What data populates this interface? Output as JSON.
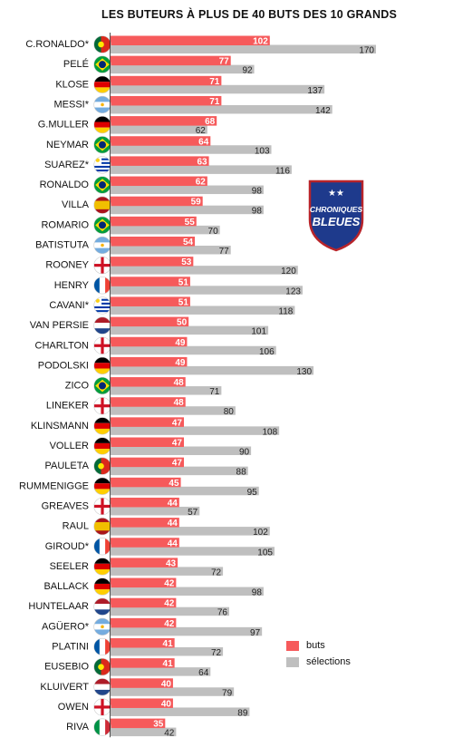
{
  "title": "LES BUTEURS À PLUS DE 40 BUTS DES 10 GRANDS",
  "colors": {
    "buts": "#f65a5b",
    "selections": "#bfbfbf"
  },
  "legend": {
    "buts": "buts",
    "selections": "sélections"
  },
  "logo": {
    "line1": "CHRONIQUES",
    "line2": "BLEUES",
    "stars": "★★"
  },
  "chart_data": {
    "type": "bar",
    "orientation": "horizontal",
    "title": "LES BUTEURS À PLUS DE 40 BUTS DES 10 GRANDS",
    "xlim": [
      0,
      170
    ],
    "grid": false,
    "legend_position": "bottom-right",
    "categories": [
      "C.RONALDO*",
      "PELÉ",
      "KLOSE",
      "MESSI*",
      "G.MULLER",
      "NEYMAR",
      "SUAREZ*",
      "RONALDO",
      "VILLA",
      "ROMARIO",
      "BATISTUTA",
      "ROONEY",
      "HENRY",
      "CAVANI*",
      "VAN PERSIE",
      "CHARLTON",
      "PODOLSKI",
      "ZICO",
      "LINEKER",
      "KLINSMANN",
      "VOLLER",
      "PAULETA",
      "RUMMENIGGE",
      "GREAVES",
      "RAUL",
      "GIROUD*",
      "SEELER",
      "BALLACK",
      "HUNTELAAR",
      "AGÜERO*",
      "PLATINI",
      "EUSEBIO",
      "KLUIVERT",
      "OWEN",
      "RIVA"
    ],
    "flags": [
      "portugal",
      "brazil",
      "germany",
      "argentina",
      "germany",
      "brazil",
      "uruguay",
      "brazil",
      "spain",
      "brazil",
      "argentina",
      "england",
      "france",
      "uruguay",
      "netherlands",
      "england",
      "germany",
      "brazil",
      "england",
      "germany",
      "germany",
      "portugal",
      "germany",
      "england",
      "spain",
      "france",
      "germany",
      "germany",
      "netherlands",
      "argentina",
      "france",
      "portugal",
      "netherlands",
      "england",
      "italy"
    ],
    "series": [
      {
        "name": "buts",
        "values": [
          102,
          77,
          71,
          71,
          68,
          64,
          63,
          62,
          59,
          55,
          54,
          53,
          51,
          51,
          50,
          49,
          49,
          48,
          48,
          47,
          47,
          47,
          45,
          44,
          44,
          44,
          43,
          42,
          42,
          42,
          41,
          41,
          40,
          40,
          35
        ]
      },
      {
        "name": "sélections",
        "values": [
          170,
          92,
          137,
          142,
          62,
          103,
          116,
          98,
          98,
          70,
          77,
          120,
          123,
          118,
          101,
          106,
          130,
          71,
          80,
          108,
          90,
          88,
          95,
          57,
          102,
          105,
          72,
          98,
          76,
          97,
          72,
          64,
          79,
          89,
          42
        ]
      }
    ]
  }
}
